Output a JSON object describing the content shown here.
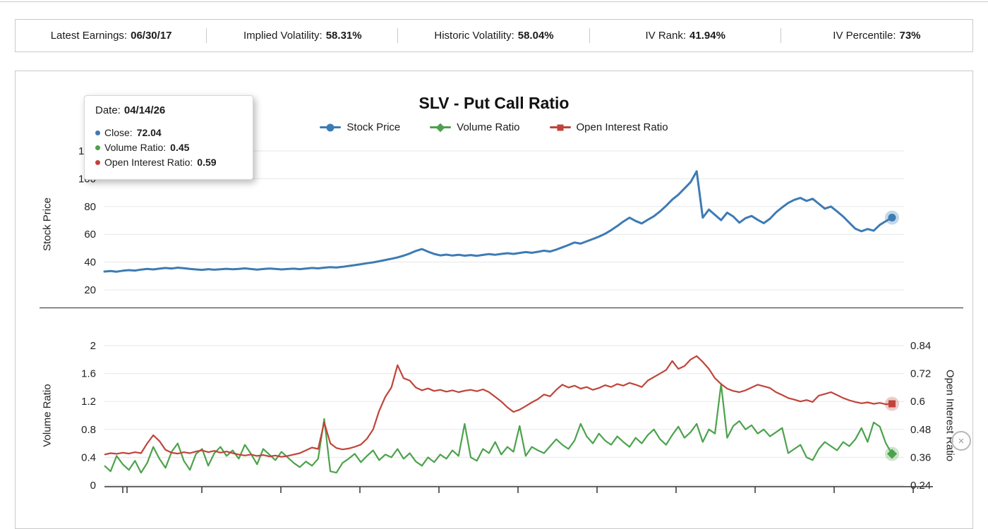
{
  "stats": {
    "items": [
      {
        "label": "Latest Earnings:",
        "value": "06/30/17"
      },
      {
        "label": "Implied Volatility:",
        "value": "58.31%"
      },
      {
        "label": "Historic Volatility:",
        "value": "58.04%"
      },
      {
        "label": "IV Rank:",
        "value": "41.94%"
      },
      {
        "label": "IV Percentile:",
        "value": "73%"
      }
    ]
  },
  "chart": {
    "title": "SLV - Put Call Ratio",
    "legend": [
      {
        "label": "Stock Price",
        "color": "#3d7bb4",
        "marker": "circle"
      },
      {
        "label": "Volume Ratio",
        "color": "#4ca24c",
        "marker": "diamond"
      },
      {
        "label": "Open Interest Ratio",
        "color": "#c0443a",
        "marker": "square"
      }
    ]
  },
  "tooltip": {
    "date_label": "Date:",
    "date_value": "04/14/26",
    "rows": [
      {
        "label": "Close:",
        "value": "72.04",
        "color": "#3d7bb4"
      },
      {
        "label": "Volume Ratio:",
        "value": "0.45",
        "color": "#4ca24c"
      },
      {
        "label": "Open Interest Ratio:",
        "value": "0.59",
        "color": "#c0443a"
      }
    ]
  },
  "close_button": {
    "symbol": "×"
  },
  "chart_data": [
    {
      "type": "line",
      "title": "SLV - Put Call Ratio",
      "ylabel": "Stock Price",
      "yticks": [
        20,
        40,
        60,
        80,
        100,
        120
      ],
      "ylim": [
        12,
        126
      ],
      "grid": true,
      "legend_position": "top",
      "series": [
        {
          "name": "Stock Price",
          "color": "#3d7bb4",
          "values": [
            33.2,
            33.6,
            33.1,
            33.8,
            34.2,
            33.9,
            34.6,
            35.1,
            34.7,
            35.3,
            35.8,
            35.4,
            36.0,
            35.6,
            35.1,
            34.7,
            34.4,
            34.9,
            34.5,
            34.8,
            35.2,
            34.8,
            35.1,
            35.5,
            35.0,
            34.6,
            35.0,
            35.4,
            35.1,
            34.7,
            35.0,
            35.3,
            34.9,
            35.4,
            35.8,
            35.5,
            36.0,
            36.4,
            36.1,
            36.6,
            37.2,
            37.8,
            38.5,
            39.2,
            39.8,
            40.6,
            41.5,
            42.4,
            43.4,
            44.6,
            46.2,
            48.0,
            49.4,
            47.5,
            45.9,
            44.8,
            45.4,
            44.7,
            45.3,
            44.6,
            45.1,
            44.5,
            45.2,
            45.8,
            45.3,
            45.9,
            46.4,
            45.9,
            46.6,
            47.2,
            46.7,
            47.4,
            48.2,
            47.6,
            49.0,
            50.6,
            52.3,
            54.1,
            53.3,
            55.0,
            56.6,
            58.3,
            60.4,
            63.0,
            66.0,
            69.2,
            72.0,
            69.6,
            67.8,
            70.5,
            73.0,
            76.5,
            80.5,
            85.0,
            88.5,
            93.0,
            97.5,
            105.4,
            72.0,
            77.8,
            74.0,
            70.2,
            75.6,
            72.8,
            68.4,
            71.6,
            73.2,
            70.4,
            68.0,
            71.2,
            75.8,
            79.4,
            82.6,
            84.8,
            86.2,
            84.0,
            85.6,
            82.0,
            78.5,
            80.0,
            76.5,
            72.8,
            68.4,
            64.0,
            62.2,
            63.8,
            62.6,
            66.8,
            69.5,
            72.04
          ]
        }
      ]
    },
    {
      "type": "line",
      "left_ylabel": "Volume Ratio",
      "right_ylabel": "Open Interest Ratio",
      "left_yticks": [
        0,
        0.4,
        0.8,
        1.2,
        1.6,
        2
      ],
      "right_yticks": [
        0.24,
        0.36,
        0.48,
        0.6,
        0.72,
        0.84
      ],
      "left_ylim": [
        0,
        2.2
      ],
      "right_ylim": [
        0.24,
        0.9
      ],
      "grid": true,
      "series": [
        {
          "name": "Volume Ratio",
          "axis": "left",
          "color": "#4ca24c",
          "values": [
            0.28,
            0.2,
            0.42,
            0.3,
            0.22,
            0.35,
            0.18,
            0.32,
            0.55,
            0.38,
            0.25,
            0.48,
            0.6,
            0.35,
            0.22,
            0.45,
            0.52,
            0.28,
            0.46,
            0.55,
            0.42,
            0.5,
            0.38,
            0.58,
            0.45,
            0.3,
            0.52,
            0.44,
            0.36,
            0.48,
            0.4,
            0.32,
            0.26,
            0.34,
            0.28,
            0.38,
            0.95,
            0.2,
            0.18,
            0.32,
            0.38,
            0.45,
            0.33,
            0.42,
            0.5,
            0.36,
            0.44,
            0.4,
            0.52,
            0.38,
            0.46,
            0.34,
            0.28,
            0.4,
            0.33,
            0.44,
            0.38,
            0.5,
            0.42,
            0.88,
            0.4,
            0.35,
            0.52,
            0.46,
            0.62,
            0.44,
            0.55,
            0.48,
            0.85,
            0.42,
            0.55,
            0.5,
            0.46,
            0.56,
            0.66,
            0.58,
            0.52,
            0.64,
            0.88,
            0.7,
            0.6,
            0.74,
            0.64,
            0.58,
            0.7,
            0.62,
            0.55,
            0.68,
            0.6,
            0.72,
            0.8,
            0.66,
            0.58,
            0.72,
            0.84,
            0.68,
            0.76,
            0.88,
            0.62,
            0.8,
            0.74,
            1.45,
            0.68,
            0.85,
            0.92,
            0.8,
            0.86,
            0.74,
            0.8,
            0.7,
            0.76,
            0.82,
            0.46,
            0.52,
            0.58,
            0.4,
            0.36,
            0.52,
            0.62,
            0.56,
            0.5,
            0.62,
            0.56,
            0.66,
            0.82,
            0.62,
            0.9,
            0.84,
            0.6,
            0.45
          ]
        },
        {
          "name": "Open Interest Ratio",
          "axis": "right",
          "color": "#c0443a",
          "values": [
            0.372,
            0.378,
            0.375,
            0.38,
            0.376,
            0.382,
            0.378,
            0.42,
            0.455,
            0.43,
            0.392,
            0.38,
            0.376,
            0.382,
            0.378,
            0.385,
            0.39,
            0.382,
            0.388,
            0.38,
            0.385,
            0.378,
            0.372,
            0.368,
            0.372,
            0.366,
            0.37,
            0.364,
            0.368,
            0.362,
            0.366,
            0.372,
            0.378,
            0.39,
            0.402,
            0.396,
            0.51,
            0.42,
            0.4,
            0.394,
            0.398,
            0.405,
            0.415,
            0.44,
            0.48,
            0.56,
            0.62,
            0.66,
            0.756,
            0.7,
            0.69,
            0.66,
            0.648,
            0.656,
            0.645,
            0.65,
            0.642,
            0.648,
            0.64,
            0.646,
            0.65,
            0.644,
            0.652,
            0.64,
            0.62,
            0.6,
            0.575,
            0.555,
            0.565,
            0.58,
            0.596,
            0.61,
            0.63,
            0.622,
            0.65,
            0.672,
            0.66,
            0.668,
            0.655,
            0.662,
            0.65,
            0.658,
            0.67,
            0.662,
            0.675,
            0.668,
            0.68,
            0.672,
            0.662,
            0.69,
            0.705,
            0.72,
            0.735,
            0.774,
            0.74,
            0.752,
            0.78,
            0.795,
            0.77,
            0.74,
            0.7,
            0.675,
            0.655,
            0.645,
            0.64,
            0.648,
            0.66,
            0.672,
            0.665,
            0.658,
            0.64,
            0.628,
            0.615,
            0.608,
            0.6,
            0.606,
            0.598,
            0.625,
            0.632,
            0.64,
            0.628,
            0.615,
            0.605,
            0.598,
            0.592,
            0.596,
            0.59,
            0.594,
            0.588,
            0.59
          ]
        }
      ]
    }
  ]
}
